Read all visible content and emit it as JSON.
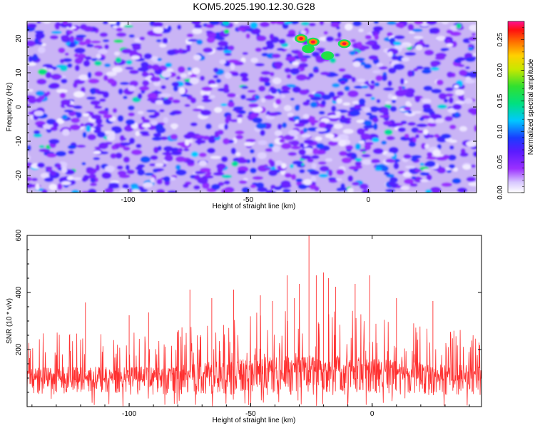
{
  "title": "KOM5.2025.190.12.30.G28",
  "chart_data": [
    {
      "type": "heatmap",
      "xlabel": "Height of straight line (km)",
      "ylabel": "Frequency (Hz)",
      "xlim": [
        -142,
        45
      ],
      "ylim": [
        -25,
        25
      ],
      "xticks": [
        -100,
        -50,
        0
      ],
      "yticks": [
        -20,
        -10,
        0,
        10,
        20
      ],
      "colorbar": {
        "label": "Normalized spectral amplitude",
        "range": [
          0,
          0.28
        ],
        "ticks": [
          "0.00",
          "0.05",
          "0.10",
          "0.15",
          "0.20",
          "0.25"
        ]
      },
      "peaks": [
        {
          "x": -28,
          "y": 20,
          "value": 0.27
        },
        {
          "x": -23,
          "y": 19,
          "value": 0.27
        },
        {
          "x": -10,
          "y": 18.5,
          "value": 0.27
        },
        {
          "x": -25,
          "y": 17,
          "value": 0.17
        },
        {
          "x": -17,
          "y": 15,
          "value": 0.17
        }
      ]
    },
    {
      "type": "line",
      "xlabel": "Height of straight line (km)",
      "ylabel": "SNR (10 * v/v)",
      "xlim": [
        -142,
        45
      ],
      "ylim": [
        0,
        600
      ],
      "xticks": [
        -100,
        -50,
        0
      ],
      "yticks": [
        200,
        400,
        600
      ],
      "color": "#ff3030",
      "series": [
        {
          "x": [
            -118,
            -100,
            -92,
            -75,
            -66,
            -57,
            -46,
            -41,
            -35,
            -32,
            -30,
            -26,
            -23,
            -20,
            -18,
            -15,
            -7,
            -1,
            10,
            25
          ],
          "values": [
            365,
            320,
            330,
            410,
            380,
            410,
            390,
            370,
            460,
            380,
            430,
            600,
            460,
            470,
            450,
            420,
            430,
            460,
            380,
            370
          ]
        }
      ]
    }
  ]
}
